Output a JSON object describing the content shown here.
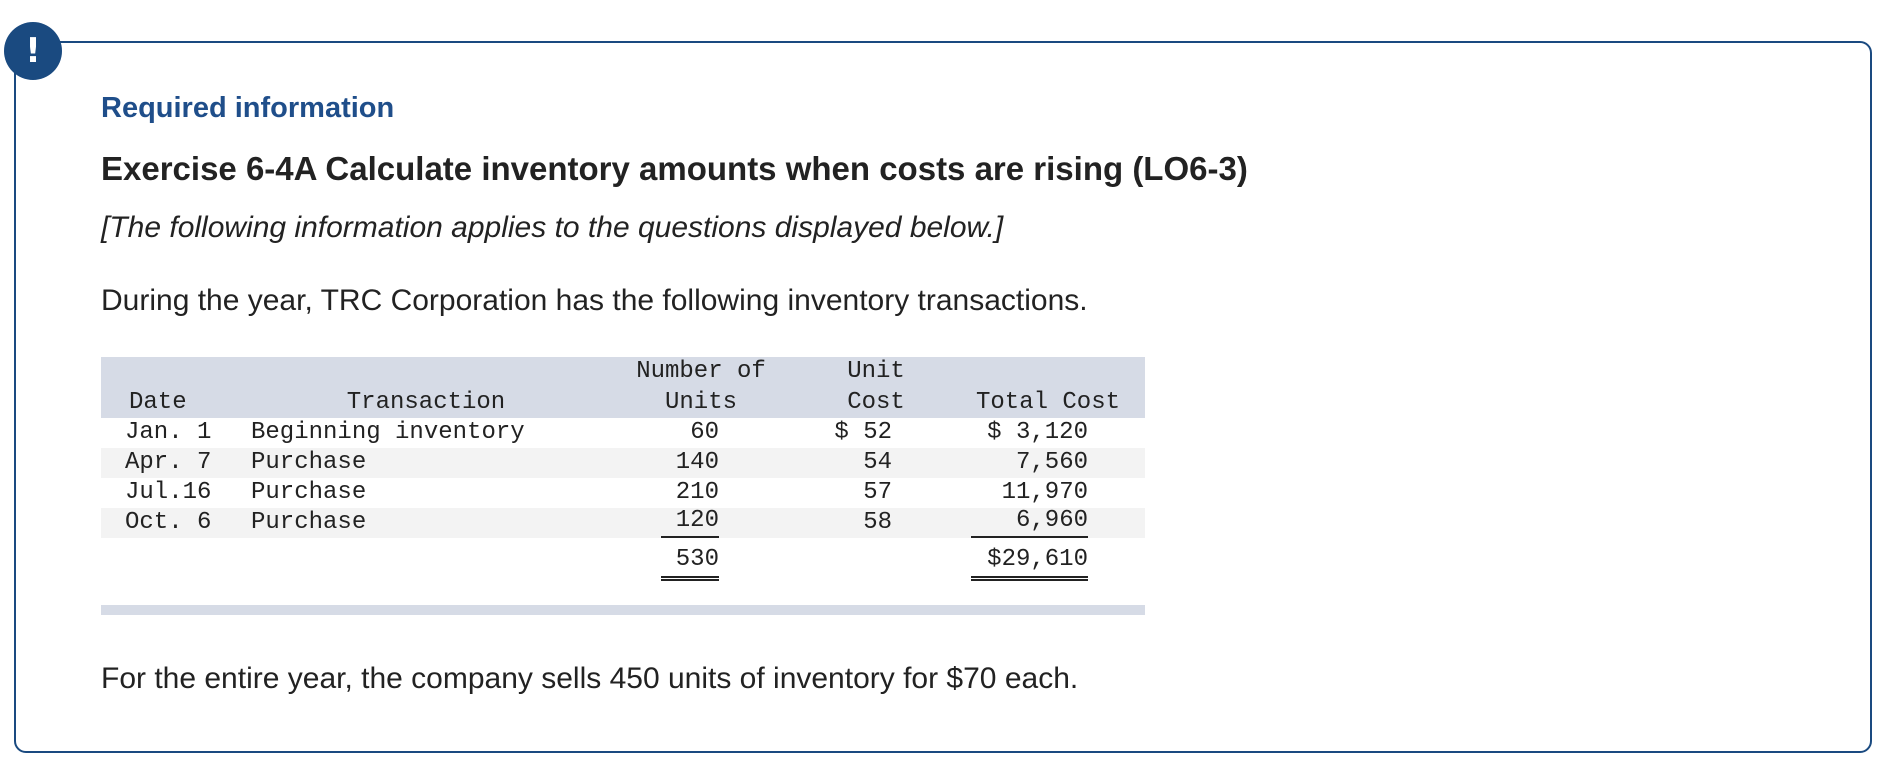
{
  "alert": {
    "icon": "exclamation-icon",
    "symbol": "!"
  },
  "required_title": "Required information",
  "exercise_title": "Exercise 6-4A Calculate inventory amounts when costs are rising (LO6-3)",
  "applies_note": "[The following information applies to the questions displayed below.]",
  "intro_text": "During  the year, TRC Corporation has the following inventory transactions.",
  "table": {
    "headers": {
      "date": "Date",
      "transaction": "Transaction",
      "units_line1": "Number of",
      "units_line2": "Units",
      "cost_line1": "Unit",
      "cost_line2": "Cost",
      "total": "Total Cost"
    },
    "rows": [
      {
        "date": "Jan. 1",
        "transaction": "Beginning inventory",
        "units": "60",
        "unit_cost": "$ 52",
        "total_cost": "$ 3,120"
      },
      {
        "date": "Apr. 7",
        "transaction": "Purchase",
        "units": "140",
        "unit_cost": "54",
        "total_cost": "7,560"
      },
      {
        "date": "Jul.16",
        "transaction": "Purchase",
        "units": "210",
        "unit_cost": "57",
        "total_cost": "11,970"
      },
      {
        "date": "Oct. 6",
        "transaction": "Purchase",
        "units": "120",
        "unit_cost": "58",
        "total_cost": "6,960"
      }
    ],
    "totals": {
      "units": "530",
      "total_cost": "$29,610"
    }
  },
  "footer_text": "For the entire year, the company sells 450 units of inventory for $70 each.",
  "colors": {
    "brand_blue": "#1a4a80",
    "heading_blue": "#1f4e8a",
    "table_header_bg": "#d6dbe6",
    "row_stripe": "#f3f3f3"
  }
}
